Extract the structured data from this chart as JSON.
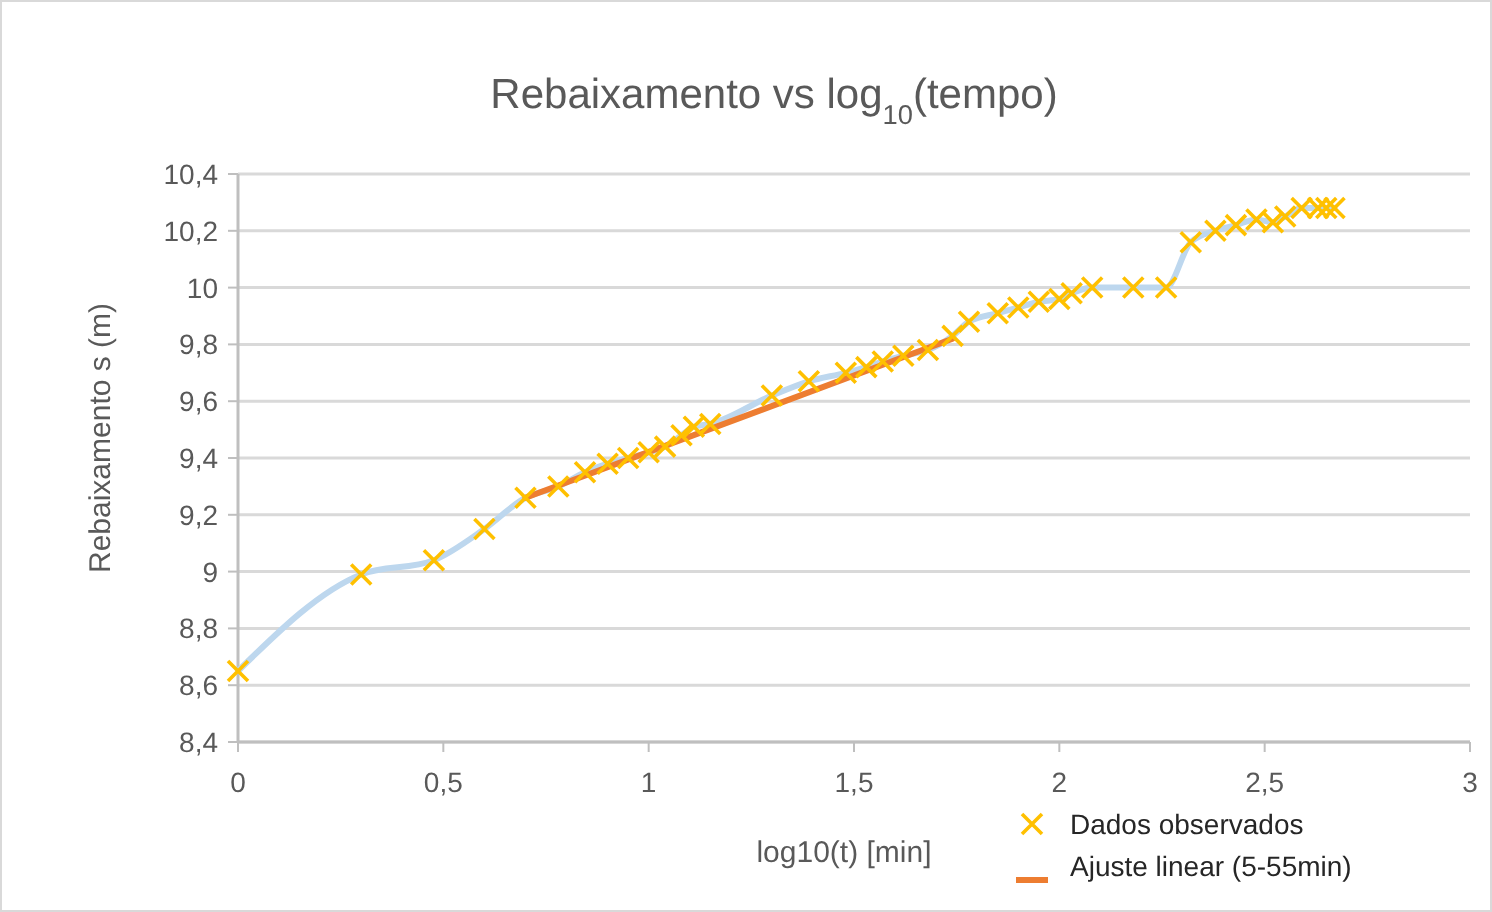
{
  "chart_data": {
    "type": "scatter",
    "title": "Rebaixamento vs log$_{10}$(tempo)",
    "xlabel": "log10(t) [min]",
    "ylabel": "Rebaixamento s (m)",
    "xlim": [
      0,
      3
    ],
    "xticks": [
      0,
      {
        "value": 0.5,
        "label": "0,5"
      },
      1,
      {
        "value": 1.5,
        "label": "1,5"
      },
      2,
      {
        "value": 2.5,
        "label": "2,5"
      },
      3
    ],
    "ylim": [
      8.4,
      10.4
    ],
    "yticks": [
      {
        "value": 8.4,
        "label": "8,4"
      },
      {
        "value": 8.6,
        "label": "8,6"
      },
      {
        "value": 8.8,
        "label": "8,8"
      },
      9,
      {
        "value": 9.2,
        "label": "9,2"
      },
      {
        "value": 9.4,
        "label": "9,4"
      },
      {
        "value": 9.6,
        "label": "9,6"
      },
      {
        "value": 9.8,
        "label": "9,8"
      },
      10,
      {
        "value": 10.2,
        "label": "10,2"
      },
      {
        "value": 10.4,
        "label": "10,4"
      }
    ],
    "grid": "y",
    "legend": "bottom right",
    "series": [
      {
        "type": "line",
        "color": "#bdd7ee",
        "marker": "none",
        "x": [
          0,
          0.3,
          0.477,
          0.6,
          0.7,
          0.78,
          0.845,
          0.9,
          0.95,
          1.0,
          1.04,
          1.08,
          1.11,
          1.15,
          1.3,
          1.39,
          1.48,
          1.53,
          1.57,
          1.62,
          1.68,
          1.74,
          1.78,
          1.85,
          1.9,
          1.95,
          2.0,
          2.03,
          2.08,
          2.18,
          2.26,
          2.32,
          2.38,
          2.43,
          2.48,
          2.52,
          2.55,
          2.59,
          2.63,
          2.65,
          2.67
        ],
        "values": [
          8.65,
          8.99,
          9.04,
          9.15,
          9.26,
          9.3,
          9.35,
          9.38,
          9.4,
          9.42,
          9.44,
          9.48,
          9.51,
          9.52,
          9.62,
          9.67,
          9.7,
          9.72,
          9.74,
          9.76,
          9.78,
          9.83,
          9.88,
          9.91,
          9.93,
          9.95,
          9.96,
          9.98,
          10.0,
          10.0,
          10.0,
          10.16,
          10.2,
          10.22,
          10.24,
          10.23,
          10.25,
          10.28,
          10.28,
          10.28,
          10.28
        ]
      },
      {
        "type": "scatter",
        "name": "Dados observados",
        "color": "#ffc000",
        "marker": "cross",
        "x": [
          0,
          0.3,
          0.477,
          0.6,
          0.7,
          0.78,
          0.845,
          0.9,
          0.95,
          1.0,
          1.04,
          1.08,
          1.11,
          1.15,
          1.3,
          1.39,
          1.48,
          1.53,
          1.57,
          1.62,
          1.68,
          1.74,
          1.78,
          1.85,
          1.9,
          1.95,
          2.0,
          2.03,
          2.08,
          2.18,
          2.26,
          2.32,
          2.38,
          2.43,
          2.48,
          2.52,
          2.55,
          2.59,
          2.63,
          2.65,
          2.67
        ],
        "values": [
          8.65,
          8.99,
          9.04,
          9.15,
          9.26,
          9.3,
          9.35,
          9.38,
          9.4,
          9.42,
          9.44,
          9.48,
          9.51,
          9.52,
          9.62,
          9.67,
          9.7,
          9.72,
          9.74,
          9.76,
          9.78,
          9.83,
          9.88,
          9.91,
          9.93,
          9.95,
          9.96,
          9.98,
          10.0,
          10.0,
          10.0,
          10.16,
          10.2,
          10.22,
          10.24,
          10.23,
          10.25,
          10.28,
          10.28,
          10.28,
          10.28
        ]
      },
      {
        "type": "line",
        "name": "Ajuste linear (5-55min)",
        "color": "#ed7d31",
        "marker": "none",
        "x": [
          0.7,
          1.74
        ],
        "values": [
          9.26,
          9.82
        ]
      }
    ]
  }
}
